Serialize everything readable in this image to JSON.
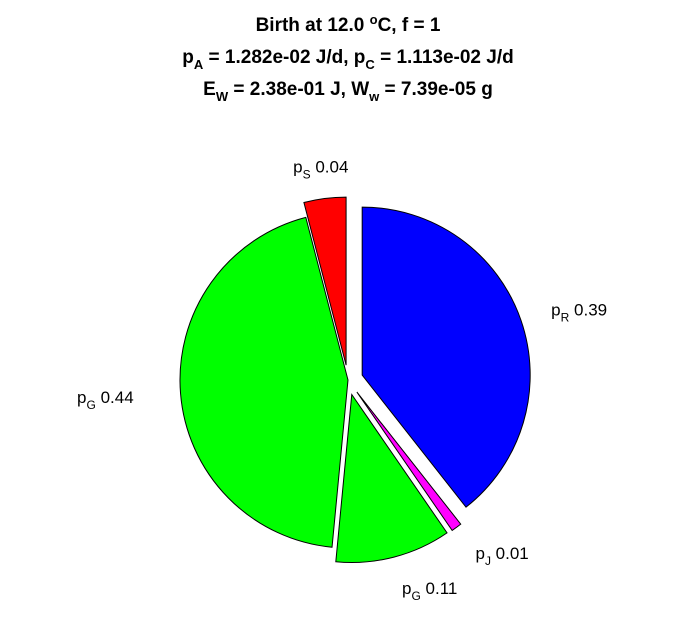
{
  "title": {
    "line1": {
      "pre": "Birth at 12.0 ",
      "sup": "o",
      "post": "C, f = 1"
    },
    "line2": {
      "a": "p",
      "a_sub": "A",
      "b": " = 1.282e-02 J/d, p",
      "b_sub": "C",
      "c": " = 1.113e-02 J/d"
    },
    "line3": {
      "a": "E",
      "a_sub": "W",
      "b": " = 2.38e-01 J, W",
      "b_sub": "w",
      "c": " = 7.39e-05 g"
    }
  },
  "chart_data": {
    "type": "pie",
    "slices": [
      {
        "symbol": "p",
        "sub": "R",
        "value_label": "0.39",
        "value": 0.39,
        "color": "#0000ff",
        "exploded": true
      },
      {
        "symbol": "p",
        "sub": "J",
        "value_label": "0.01",
        "value": 0.01,
        "color": "#ff00ff",
        "exploded": true
      },
      {
        "symbol": "p",
        "sub": "G",
        "value_label": "0.11",
        "value": 0.11,
        "color": "#00ff00",
        "exploded": true
      },
      {
        "symbol": "p",
        "sub": "G",
        "value_label": "0.44",
        "value": 0.44,
        "color": "#00ff00",
        "exploded": false
      },
      {
        "symbol": "p",
        "sub": "S",
        "value_label": "0.04",
        "value": 0.04,
        "color": "#ff0000",
        "exploded": true
      }
    ]
  }
}
